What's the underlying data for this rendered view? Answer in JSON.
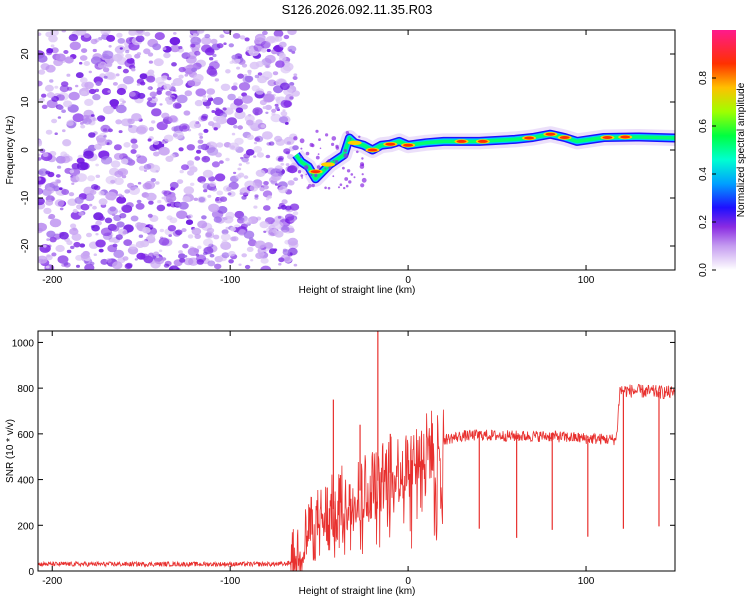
{
  "figure": {
    "title": "S126.2026.092.11.35.R03"
  },
  "chart_data": [
    {
      "type": "heatmap",
      "xlabel": "Height of straight line (km)",
      "ylabel": "Frequency (Hz)",
      "xlim": [
        -208,
        150
      ],
      "ylim": [
        -25,
        25
      ],
      "xticks": [
        -200,
        -100,
        0,
        100
      ],
      "yticks": [
        -20,
        -10,
        0,
        10,
        20
      ],
      "grid": false,
      "noise_region_x": [
        -208,
        -63
      ],
      "ridge": [
        {
          "x": -63,
          "f": -1
        },
        {
          "x": -60,
          "f": -2.5
        },
        {
          "x": -56,
          "f": -3.5
        },
        {
          "x": -52,
          "f": -6
        },
        {
          "x": -48,
          "f": -4.5
        },
        {
          "x": -44,
          "f": -3
        },
        {
          "x": -40,
          "f": -2
        },
        {
          "x": -36,
          "f": -1
        },
        {
          "x": -33,
          "f": 2.5
        },
        {
          "x": -30,
          "f": 1.5
        },
        {
          "x": -25,
          "f": 1
        },
        {
          "x": -20,
          "f": 0
        },
        {
          "x": -15,
          "f": 1
        },
        {
          "x": -10,
          "f": 1.2
        },
        {
          "x": -5,
          "f": 1.8
        },
        {
          "x": 0,
          "f": 1
        },
        {
          "x": 10,
          "f": 1.5
        },
        {
          "x": 20,
          "f": 1.8
        },
        {
          "x": 40,
          "f": 1.8
        },
        {
          "x": 60,
          "f": 2.2
        },
        {
          "x": 70,
          "f": 2.6
        },
        {
          "x": 80,
          "f": 3.3
        },
        {
          "x": 88,
          "f": 2.6
        },
        {
          "x": 95,
          "f": 1.8
        },
        {
          "x": 110,
          "f": 2.6
        },
        {
          "x": 130,
          "f": 2.7
        },
        {
          "x": 150,
          "f": 2.5
        }
      ],
      "colorbar": {
        "label": "Normalized spectral amplitude",
        "range": [
          0,
          1
        ],
        "ticks": [
          "0.0",
          "0.2",
          "0.4",
          "0.6",
          "0.8"
        ],
        "colormap": [
          "#ffffff",
          "#8a2be2",
          "#1e10ff",
          "#00c8ff",
          "#00ff80",
          "#80ff00",
          "#ffd000",
          "#ff3000",
          "#ff1493"
        ]
      }
    },
    {
      "type": "line",
      "xlabel": "Height of straight line (km)",
      "ylabel": "SNR (10 * v/v)",
      "xlim": [
        -208,
        150
      ],
      "ylim": [
        0,
        1050
      ],
      "xticks": [
        -200,
        -100,
        0,
        100
      ],
      "yticks": [
        0,
        200,
        400,
        600,
        800,
        1000
      ],
      "grid": false,
      "color": "#e8302e",
      "profile": [
        {
          "x": -208,
          "y": 30
        },
        {
          "x": -70,
          "y": 30
        },
        {
          "x": -64,
          "y": 40
        },
        {
          "x": -55,
          "y": 180
        },
        {
          "x": -45,
          "y": 250
        },
        {
          "x": -35,
          "y": 320
        },
        {
          "x": -20,
          "y": 380
        },
        {
          "x": -10,
          "y": 430
        },
        {
          "x": 0,
          "y": 470
        },
        {
          "x": 10,
          "y": 540
        },
        {
          "x": 20,
          "y": 575
        },
        {
          "x": 30,
          "y": 590
        },
        {
          "x": 40,
          "y": 595
        },
        {
          "x": 60,
          "y": 590
        },
        {
          "x": 80,
          "y": 590
        },
        {
          "x": 100,
          "y": 580
        },
        {
          "x": 117,
          "y": 575
        },
        {
          "x": 119,
          "y": 790
        },
        {
          "x": 150,
          "y": 780
        }
      ],
      "spikes": [
        {
          "x": -42,
          "y": 750
        },
        {
          "x": -38,
          "y": 420
        },
        {
          "x": -27,
          "y": 640
        },
        {
          "x": -17,
          "y": 1050
        },
        {
          "x": -10,
          "y": 600
        },
        {
          "x": 12,
          "y": 580
        },
        {
          "x": 40,
          "y": 185
        },
        {
          "x": 61,
          "y": 145
        },
        {
          "x": 81,
          "y": 180
        },
        {
          "x": 101,
          "y": 150
        },
        {
          "x": 121,
          "y": 185
        },
        {
          "x": 141,
          "y": 195
        }
      ]
    }
  ]
}
